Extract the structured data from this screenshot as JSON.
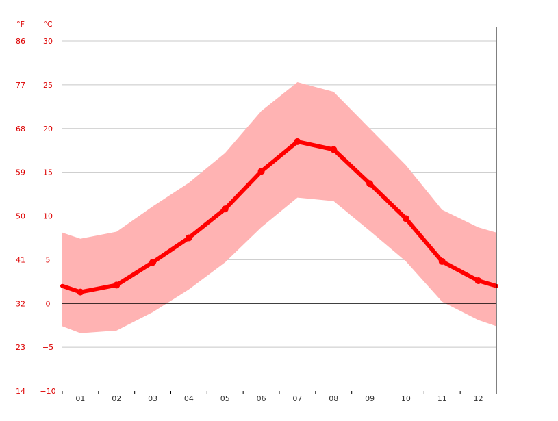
{
  "chart_data": {
    "type": "area",
    "categories": [
      "01",
      "02",
      "03",
      "04",
      "05",
      "06",
      "07",
      "08",
      "09",
      "10",
      "11",
      "12"
    ],
    "series": [
      {
        "key": "average",
        "values": [
          1.3,
          2.1,
          4.7,
          7.5,
          10.8,
          15.1,
          18.5,
          17.6,
          13.7,
          9.7,
          4.8,
          2.6
        ]
      },
      {
        "key": "min",
        "values": [
          -3.4,
          -3.1,
          -1.0,
          1.6,
          4.7,
          8.7,
          12.1,
          11.7,
          8.3,
          4.8,
          0.2,
          -1.9
        ]
      },
      {
        "key": "max",
        "values": [
          7.4,
          8.2,
          11.1,
          13.8,
          17.2,
          22.0,
          25.3,
          24.2,
          20.0,
          15.8,
          10.7,
          8.7
        ]
      }
    ],
    "edge_values": {
      "left": {
        "average": 2.0,
        "min": -2.6,
        "max": 8.1
      },
      "right": {
        "average": 2.0,
        "min": -2.6,
        "max": 8.1
      }
    },
    "celsius_ticks": [
      "30",
      "25",
      "20",
      "15",
      "10",
      "5",
      "0",
      "−5",
      "−10"
    ],
    "fahrenheit_ticks": [
      "86",
      "77",
      "68",
      "59",
      "50",
      "41",
      "32",
      "23",
      "14"
    ],
    "ylim": [
      -10,
      30
    ],
    "unit_f": "°F",
    "unit_c": "°C",
    "grid": true,
    "colors": {
      "average": "#ff0000",
      "band": "#ffb3b3",
      "axis_text": "#dd0000",
      "grid": "#c8c8c8",
      "zero_line": "#000000"
    }
  }
}
